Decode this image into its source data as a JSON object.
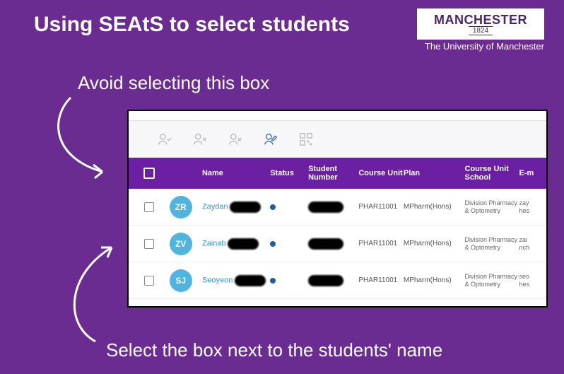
{
  "slide": {
    "title": "Using SEAtS to select students",
    "caption_top": "Avoid selecting this box",
    "caption_bottom": "Select the box next to the students' name"
  },
  "logo": {
    "main": "MANCHESTER",
    "year": "1824",
    "sub": "The University of Manchester"
  },
  "table": {
    "headers": {
      "name": "Name",
      "status": "Status",
      "student_number": "Student Number",
      "course_unit": "Course Unit",
      "plan": "Plan",
      "course_unit_school": "Course Unit School",
      "email": "E-m"
    },
    "rows": [
      {
        "initials": "ZR",
        "first": "Zaydan",
        "course": "PHAR11001",
        "plan": "MPharm(Hons)",
        "school": "Division Pharmacy & Optometry",
        "email": "zay\nhes"
      },
      {
        "initials": "ZV",
        "first": "Zainab",
        "course": "PHAR11001",
        "plan": "MPharm(Hons)",
        "school": "Division Pharmacy & Optometry",
        "email": "zai\nnch"
      },
      {
        "initials": "SJ",
        "first": "Seoyeon",
        "course": "PHAR11001",
        "plan": "MPharm(Hons)",
        "school": "Division Pharmacy & Optometry",
        "email": "seo\nhes"
      }
    ]
  },
  "colors": {
    "background": "#6b2c91",
    "table_header": "#6b1fa3",
    "avatar": "#4fb5df",
    "link": "#3795c6"
  }
}
